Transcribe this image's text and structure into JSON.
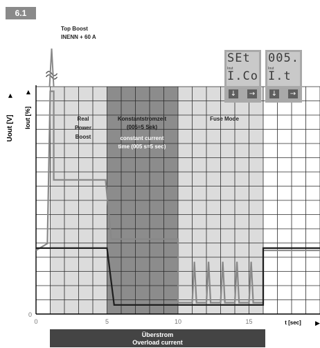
{
  "figure_id": "6.1",
  "annotations": {
    "top_boost_1": "Top Boost",
    "top_boost_2": "INENN + 60 A",
    "real_power": [
      "Real",
      "Power",
      "Boost"
    ],
    "const_de": [
      "Konstantstromzeit",
      "(005=5 Sek)"
    ],
    "const_en": [
      "constant current",
      "time (005 s=5 sec)"
    ],
    "fuse_mode": "Fuse Mode"
  },
  "axes": {
    "y1_label": "Uout [V]",
    "y2_label": "Iout [%]",
    "x_label": "t [sec]",
    "x_ticks": [
      "0",
      "5",
      "10",
      "15"
    ],
    "y_zero": "0"
  },
  "displays": [
    {
      "row1": "SEt",
      "label": "Iout",
      "row2": "I.Co",
      "btn_left": "↓",
      "btn_right": "→"
    },
    {
      "row1": "005.",
      "label": "Iout",
      "row2": "I.t",
      "btn_left": "↓",
      "btn_right": "→"
    }
  ],
  "bottom_bar": {
    "de": "Überstrom",
    "en": "Overload current"
  },
  "colors": {
    "zone_light": "#dcdcdc",
    "zone_mid": "#bdbdbd",
    "zone_dark": "#8c8c8c",
    "grid": "#2a2a2a",
    "current_line": "#888888",
    "voltage_line": "#1e1e1e"
  },
  "chart_data": {
    "type": "line",
    "x_range": [
      0,
      20
    ],
    "zones": [
      {
        "name": "Real Power Boost",
        "x_start": 1,
        "x_end": 5
      },
      {
        "name": "Konstantstromzeit",
        "x_start": 5,
        "x_end": 10
      },
      {
        "name": "Fuse Mode",
        "x_start": 10,
        "x_end": 16
      }
    ],
    "series": [
      {
        "points": [
          [
            0,
            0.28
          ],
          [
            0.8,
            0.31
          ],
          [
            1.0,
            0.98
          ],
          [
            1.25,
            0.98
          ],
          [
            1.25,
            0.59
          ],
          [
            4.9,
            0.59
          ],
          [
            5.3,
            0.33
          ],
          [
            10,
            0.33
          ],
          [
            10,
            0.05
          ],
          [
            11,
            0.05
          ],
          [
            11.15,
            0.23
          ],
          [
            11.3,
            0.05
          ],
          [
            12,
            0.05
          ],
          [
            12.15,
            0.23
          ],
          [
            12.3,
            0.05
          ],
          [
            13,
            0.05
          ],
          [
            13.15,
            0.23
          ],
          [
            13.3,
            0.05
          ],
          [
            14,
            0.05
          ],
          [
            14.15,
            0.23
          ],
          [
            14.3,
            0.05
          ],
          [
            15,
            0.05
          ],
          [
            15.15,
            0.23
          ],
          [
            15.3,
            0.05
          ],
          [
            16,
            0.05
          ],
          [
            16,
            0.28
          ],
          [
            20,
            0.28
          ]
        ]
      },
      {
        "points": [
          [
            0,
            0.29
          ],
          [
            5,
            0.29
          ],
          [
            5.5,
            0.04
          ],
          [
            16,
            0.04
          ],
          [
            16,
            0.29
          ],
          [
            20,
            0.29
          ]
        ]
      }
    ]
  }
}
